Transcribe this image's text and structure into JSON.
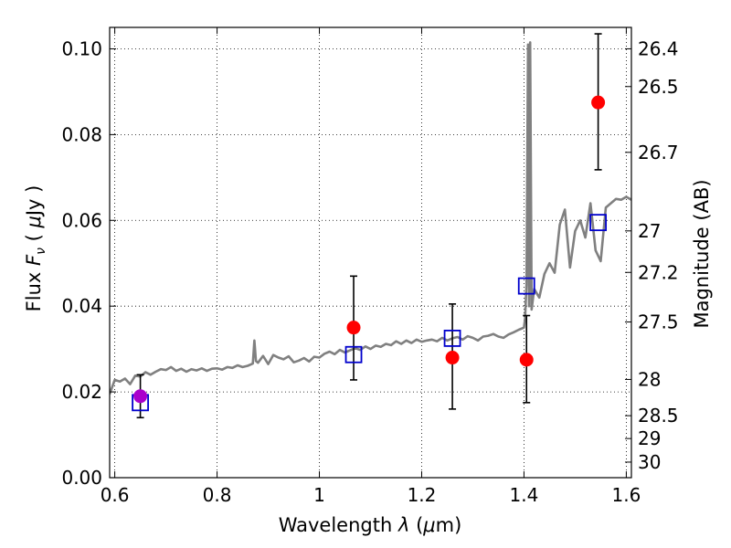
{
  "chart_data": {
    "type": "scatter",
    "xlabel_parts": {
      "text": "Wavelength  ",
      "sym": "λ",
      "open": " (",
      "unit": "μ",
      "unit_rest": "m)"
    },
    "ylabel_parts": {
      "text": "Flux  ",
      "sym": "F",
      "sub": "ν",
      "mid": "  ( ",
      "unit": "μ",
      "unit_rest": "Jy )"
    },
    "y2label": "Magnitude (AB)",
    "xlim": [
      0.59,
      1.61
    ],
    "ylim": [
      0.0,
      0.105
    ],
    "xticks": [
      {
        "value": 0.6,
        "label": "0.6"
      },
      {
        "value": 0.8,
        "label": "0.8"
      },
      {
        "value": 1.0,
        "label": "1"
      },
      {
        "value": 1.2,
        "label": "1.2"
      },
      {
        "value": 1.4,
        "label": "1.4"
      },
      {
        "value": 1.6,
        "label": "1.6"
      }
    ],
    "yticks": [
      {
        "value": 0.0,
        "label": "0.00"
      },
      {
        "value": 0.02,
        "label": "0.02"
      },
      {
        "value": 0.04,
        "label": "0.04"
      },
      {
        "value": 0.06,
        "label": "0.06"
      },
      {
        "value": 0.08,
        "label": "0.08"
      },
      {
        "value": 0.1,
        "label": "0.10"
      }
    ],
    "y2ticks": [
      {
        "value": 26.4,
        "label": "26.4"
      },
      {
        "value": 26.5,
        "label": "26.5"
      },
      {
        "value": 26.7,
        "label": "26.7"
      },
      {
        "value": 27.0,
        "label": "27"
      },
      {
        "value": 27.2,
        "label": "27.2"
      },
      {
        "value": 27.5,
        "label": "27.5"
      },
      {
        "value": 28.0,
        "label": "28"
      },
      {
        "value": 28.5,
        "label": "28.5"
      },
      {
        "value": 29.0,
        "label": "29"
      },
      {
        "value": 30.0,
        "label": "30"
      }
    ],
    "grid": true,
    "series": [
      {
        "style": "line",
        "color": "#808080",
        "x": [
          0.59,
          0.6,
          0.61,
          0.62,
          0.63,
          0.64,
          0.65,
          0.66,
          0.67,
          0.68,
          0.69,
          0.7,
          0.71,
          0.72,
          0.73,
          0.74,
          0.75,
          0.76,
          0.77,
          0.78,
          0.79,
          0.8,
          0.81,
          0.82,
          0.83,
          0.84,
          0.85,
          0.86,
          0.87,
          0.873,
          0.876,
          0.88,
          0.89,
          0.9,
          0.91,
          0.92,
          0.93,
          0.94,
          0.95,
          0.96,
          0.97,
          0.98,
          0.99,
          1.0,
          1.01,
          1.02,
          1.03,
          1.04,
          1.05,
          1.06,
          1.07,
          1.08,
          1.09,
          1.1,
          1.11,
          1.12,
          1.13,
          1.14,
          1.15,
          1.16,
          1.17,
          1.18,
          1.19,
          1.2,
          1.21,
          1.22,
          1.23,
          1.24,
          1.25,
          1.26,
          1.27,
          1.28,
          1.29,
          1.3,
          1.31,
          1.32,
          1.33,
          1.34,
          1.35,
          1.36,
          1.37,
          1.38,
          1.39,
          1.4,
          1.402,
          1.405,
          1.408,
          1.41,
          1.412,
          1.415,
          1.42,
          1.43,
          1.44,
          1.45,
          1.46,
          1.47,
          1.48,
          1.49,
          1.5,
          1.51,
          1.52,
          1.53,
          1.54,
          1.55,
          1.56,
          1.57,
          1.58,
          1.59,
          1.6,
          1.61
        ],
        "y": [
          0.0195,
          0.0228,
          0.0224,
          0.0231,
          0.0218,
          0.0238,
          0.0236,
          0.0246,
          0.024,
          0.0247,
          0.0253,
          0.0251,
          0.0258,
          0.0249,
          0.0254,
          0.0247,
          0.0253,
          0.025,
          0.0255,
          0.0249,
          0.0254,
          0.0255,
          0.0252,
          0.0258,
          0.0256,
          0.0262,
          0.0258,
          0.0261,
          0.0266,
          0.032,
          0.0272,
          0.0268,
          0.0284,
          0.0265,
          0.0286,
          0.028,
          0.0276,
          0.0283,
          0.0269,
          0.0273,
          0.0279,
          0.0271,
          0.0282,
          0.028,
          0.0289,
          0.0294,
          0.0288,
          0.0298,
          0.0292,
          0.0297,
          0.0302,
          0.0298,
          0.0306,
          0.03,
          0.0308,
          0.0305,
          0.0312,
          0.0309,
          0.0318,
          0.0312,
          0.032,
          0.0314,
          0.0322,
          0.0317,
          0.032,
          0.0322,
          0.0318,
          0.0326,
          0.032,
          0.0325,
          0.0328,
          0.0322,
          0.033,
          0.0326,
          0.032,
          0.0329,
          0.0331,
          0.0335,
          0.0329,
          0.0326,
          0.0334,
          0.0339,
          0.0345,
          0.035,
          0.037,
          0.045,
          0.101,
          0.04,
          0.1015,
          0.0392,
          0.044,
          0.042,
          0.0475,
          0.05,
          0.0478,
          0.059,
          0.0625,
          0.049,
          0.0575,
          0.06,
          0.056,
          0.064,
          0.053,
          0.0505,
          0.063,
          0.064,
          0.065,
          0.0648,
          0.0655,
          0.0648
        ],
        "note": ""
      },
      {
        "style": "open-square",
        "color": "#0000cc",
        "x": [
          0.65,
          1.067,
          1.26,
          1.405,
          1.545
        ],
        "y": [
          0.0175,
          0.0287,
          0.0325,
          0.0447,
          0.0595
        ]
      },
      {
        "style": "point-errorbar",
        "color": "#ff0000",
        "errorbar_color": "#000000",
        "x": [
          0.65,
          1.067,
          1.26,
          1.405,
          1.545
        ],
        "y": [
          0.019,
          0.035,
          0.028,
          0.0275,
          0.0875
        ],
        "yerr_low": [
          0.014,
          0.0228,
          0.016,
          0.0175,
          0.0718
        ],
        "yerr_high": [
          0.024,
          0.047,
          0.0405,
          0.0378,
          0.1035
        ],
        "first_point_color": "#aa00cc"
      }
    ]
  }
}
